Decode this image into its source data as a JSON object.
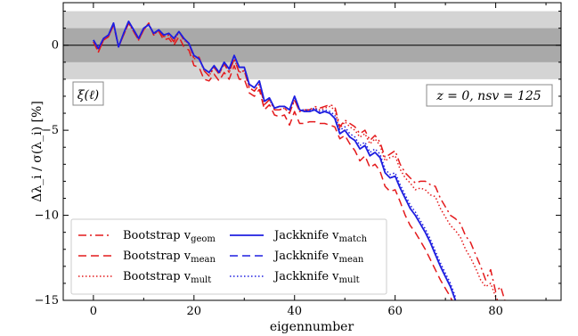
{
  "chart_data": {
    "type": "line",
    "xlabel": "eigennumber",
    "ylabel": "Δλ_i / σ(λ_i)  [%]",
    "xlim": [
      -6,
      93
    ],
    "ylim": [
      -15,
      2.5
    ],
    "xticks": [
      0,
      20,
      40,
      60,
      80
    ],
    "yticks": [
      0,
      -5,
      -10,
      -15
    ],
    "bands": [
      {
        "from": -2,
        "to": 2,
        "color": "#d4d4d4"
      },
      {
        "from": -1,
        "to": 1,
        "color": "#a9a9a9"
      }
    ],
    "hline": 0,
    "annotations": {
      "left": "ξ(ℓ)",
      "right": "z = 0,  nsv = 125"
    },
    "series": [
      {
        "name": "Bootstrap vgeom",
        "color": "#e41a1c",
        "dash": "dashdot",
        "x": [
          0,
          1,
          2,
          3,
          4,
          5,
          6,
          7,
          8,
          9,
          10,
          11,
          12,
          13,
          14,
          15,
          16,
          17,
          18,
          19,
          20,
          21,
          22,
          23,
          24,
          25,
          26,
          27,
          28,
          29,
          30,
          31,
          32,
          33,
          34,
          35,
          36,
          37,
          38,
          39,
          40,
          41,
          42,
          43,
          44,
          45,
          46,
          47,
          48,
          49,
          50,
          51,
          52,
          53,
          54,
          55,
          56,
          57,
          58,
          59,
          60,
          61,
          62,
          63,
          64,
          65,
          66,
          67,
          68,
          69,
          70,
          71,
          72,
          73,
          74,
          75,
          76,
          77,
          78,
          79,
          80,
          81,
          82
        ],
        "y": [
          0.2,
          -0.4,
          0.3,
          0.5,
          1.2,
          -0.1,
          0.6,
          1.3,
          0.8,
          0.3,
          0.9,
          1.3,
          0.6,
          0.9,
          0.5,
          0.6,
          0.2,
          0.8,
          0.3,
          0.1,
          -0.8,
          -0.7,
          -1.5,
          -1.8,
          -1.3,
          -1.7,
          -1.1,
          -1.6,
          -0.8,
          -1.6,
          -1.5,
          -2.5,
          -2.7,
          -2.3,
          -3.5,
          -3.2,
          -3.8,
          -3.8,
          -3.7,
          -4.0,
          -3.2,
          -3.9,
          -3.8,
          -3.8,
          -3.6,
          -3.7,
          -3.6,
          -3.5,
          -3.6,
          -4.8,
          -4.4,
          -4.6,
          -4.8,
          -5.2,
          -5.0,
          -5.6,
          -5.3,
          -5.7,
          -6.6,
          -6.4,
          -6.2,
          -7.0,
          -7.5,
          -7.8,
          -8.1,
          -8.0,
          -8.0,
          -8.2,
          -8.3,
          -9.0,
          -9.5,
          -10.0,
          -10.2,
          -10.5,
          -11.2,
          -11.6,
          -12.3,
          -13.0,
          -13.8,
          -13.2,
          -14.5,
          -14.2,
          -15.2
        ]
      },
      {
        "name": "Bootstrap vmean",
        "color": "#e41a1c",
        "dash": "dashed",
        "x": [
          0,
          1,
          2,
          3,
          4,
          5,
          6,
          7,
          8,
          9,
          10,
          11,
          12,
          13,
          14,
          15,
          16,
          17,
          18,
          19,
          20,
          21,
          22,
          23,
          24,
          25,
          26,
          27,
          28,
          29,
          30,
          31,
          32,
          33,
          34,
          35,
          36,
          37,
          38,
          39,
          40,
          41,
          42,
          43,
          44,
          45,
          46,
          47,
          48,
          49,
          50,
          51,
          52,
          53,
          54,
          55,
          56,
          57,
          58,
          59,
          60,
          61,
          62,
          63,
          64,
          65,
          66,
          67,
          68,
          69,
          70,
          71,
          72
        ],
        "y": [
          0.2,
          -0.4,
          0.3,
          0.5,
          1.2,
          -0.1,
          0.6,
          1.3,
          0.8,
          0.3,
          0.9,
          1.3,
          0.6,
          0.8,
          0.3,
          0.4,
          0.0,
          0.5,
          -0.1,
          -0.3,
          -1.2,
          -1.3,
          -2.0,
          -2.1,
          -1.7,
          -2.1,
          -1.6,
          -2.0,
          -1.2,
          -2.0,
          -2.0,
          -2.8,
          -3.0,
          -2.6,
          -3.8,
          -3.5,
          -4.1,
          -4.2,
          -4.1,
          -4.7,
          -3.9,
          -4.6,
          -4.6,
          -4.5,
          -4.5,
          -4.6,
          -4.6,
          -4.7,
          -4.8,
          -5.5,
          -5.3,
          -5.8,
          -6.2,
          -6.8,
          -6.5,
          -7.2,
          -7.0,
          -7.4,
          -8.3,
          -8.6,
          -8.5,
          -9.2,
          -10.0,
          -10.6,
          -11.0,
          -11.5,
          -12.0,
          -12.6,
          -13.2,
          -13.8,
          -14.3,
          -14.8,
          -15.5
        ]
      },
      {
        "name": "Bootstrap vmult",
        "color": "#e41a1c",
        "dash": "dotted",
        "x": [
          0,
          1,
          2,
          3,
          4,
          5,
          6,
          7,
          8,
          9,
          10,
          11,
          12,
          13,
          14,
          15,
          16,
          17,
          18,
          19,
          20,
          21,
          22,
          23,
          24,
          25,
          26,
          27,
          28,
          29,
          30,
          31,
          32,
          33,
          34,
          35,
          36,
          37,
          38,
          39,
          40,
          41,
          42,
          43,
          44,
          45,
          46,
          47,
          48,
          49,
          50,
          51,
          52,
          53,
          54,
          55,
          56,
          57,
          58,
          59,
          60,
          61,
          62,
          63,
          64,
          65,
          66,
          67,
          68,
          69,
          70,
          71,
          72,
          73,
          74,
          75,
          76,
          77,
          78,
          79,
          80,
          81
        ],
        "y": [
          0.2,
          -0.4,
          0.3,
          0.5,
          1.2,
          -0.1,
          0.6,
          1.3,
          0.8,
          0.3,
          0.9,
          1.3,
          0.6,
          0.9,
          0.5,
          0.6,
          0.2,
          0.8,
          0.3,
          0.1,
          -0.8,
          -0.7,
          -1.5,
          -1.8,
          -1.3,
          -1.7,
          -1.1,
          -1.6,
          -0.8,
          -1.6,
          -1.5,
          -2.5,
          -2.7,
          -2.3,
          -3.5,
          -3.2,
          -3.8,
          -3.8,
          -3.7,
          -4.0,
          -3.2,
          -3.9,
          -3.8,
          -3.9,
          -3.7,
          -3.8,
          -3.7,
          -3.6,
          -3.8,
          -4.9,
          -4.5,
          -4.8,
          -5.0,
          -5.4,
          -5.2,
          -5.8,
          -5.5,
          -5.9,
          -6.8,
          -6.6,
          -6.5,
          -7.3,
          -7.8,
          -8.1,
          -8.5,
          -8.4,
          -8.5,
          -8.8,
          -8.9,
          -9.6,
          -10.1,
          -10.6,
          -10.9,
          -11.3,
          -12.0,
          -12.5,
          -13.1,
          -13.8,
          -14.2,
          -14.0,
          -14.8,
          -15.3
        ]
      },
      {
        "name": "Jackknife vmatch",
        "color": "#1f1fe0",
        "dash": "solid",
        "x": [
          0,
          1,
          2,
          3,
          4,
          5,
          6,
          7,
          8,
          9,
          10,
          11,
          12,
          13,
          14,
          15,
          16,
          17,
          18,
          19,
          20,
          21,
          22,
          23,
          24,
          25,
          26,
          27,
          28,
          29,
          30,
          31,
          32,
          33,
          34,
          35,
          36,
          37,
          38,
          39,
          40,
          41,
          42,
          43,
          44,
          45,
          46,
          47,
          48,
          49,
          50,
          51,
          52,
          53,
          54,
          55,
          56,
          57,
          58,
          59,
          60,
          61,
          62,
          63,
          64,
          65,
          66,
          67,
          68,
          69,
          70,
          71,
          72
        ],
        "y": [
          0.3,
          -0.2,
          0.4,
          0.6,
          1.3,
          -0.1,
          0.7,
          1.4,
          0.9,
          0.4,
          1.0,
          1.2,
          0.7,
          0.9,
          0.6,
          0.7,
          0.4,
          0.8,
          0.4,
          0.1,
          -0.6,
          -0.8,
          -1.4,
          -1.6,
          -1.2,
          -1.6,
          -1.0,
          -1.4,
          -0.6,
          -1.3,
          -1.3,
          -2.3,
          -2.5,
          -2.1,
          -3.3,
          -3.1,
          -3.7,
          -3.6,
          -3.6,
          -3.8,
          -3.0,
          -3.8,
          -3.9,
          -3.9,
          -3.8,
          -4.0,
          -3.9,
          -4.0,
          -4.3,
          -5.2,
          -5.0,
          -5.4,
          -5.6,
          -6.1,
          -5.9,
          -6.5,
          -6.3,
          -6.6,
          -7.5,
          -7.8,
          -7.7,
          -8.4,
          -9.0,
          -9.6,
          -10.0,
          -10.5,
          -11.0,
          -11.6,
          -12.3,
          -13.0,
          -13.6,
          -14.2,
          -15.0
        ]
      },
      {
        "name": "Jackknife vmean",
        "color": "#1f1fe0",
        "dash": "dashed",
        "x": [
          0,
          1,
          2,
          3,
          4,
          5,
          6,
          7,
          8,
          9,
          10,
          11,
          12,
          13,
          14,
          15,
          16,
          17,
          18,
          19,
          20,
          21,
          22,
          23,
          24,
          25,
          26,
          27,
          28,
          29,
          30,
          31,
          32,
          33,
          34,
          35,
          36,
          37,
          38,
          39,
          40,
          41,
          42,
          43,
          44,
          45,
          46,
          47,
          48,
          49,
          50,
          51,
          52,
          53,
          54,
          55,
          56,
          57,
          58,
          59,
          60,
          61,
          62,
          63,
          64,
          65,
          66,
          67,
          68,
          69,
          70,
          71,
          72
        ],
        "y": [
          0.3,
          -0.2,
          0.4,
          0.6,
          1.3,
          -0.1,
          0.7,
          1.4,
          0.9,
          0.4,
          1.0,
          1.2,
          0.7,
          0.9,
          0.6,
          0.7,
          0.4,
          0.8,
          0.4,
          0.1,
          -0.6,
          -0.8,
          -1.4,
          -1.6,
          -1.2,
          -1.6,
          -1.0,
          -1.4,
          -0.6,
          -1.3,
          -1.3,
          -2.3,
          -2.5,
          -2.1,
          -3.3,
          -3.1,
          -3.7,
          -3.6,
          -3.6,
          -3.8,
          -3.0,
          -3.8,
          -3.9,
          -3.9,
          -3.8,
          -4.0,
          -3.9,
          -4.0,
          -4.3,
          -5.2,
          -5.0,
          -5.4,
          -5.6,
          -6.1,
          -5.9,
          -6.5,
          -6.3,
          -6.6,
          -7.5,
          -7.8,
          -7.7,
          -8.4,
          -9.0,
          -9.6,
          -10.0,
          -10.5,
          -11.0,
          -11.6,
          -12.3,
          -13.0,
          -13.6,
          -14.2,
          -15.0
        ]
      },
      {
        "name": "Jackknife vmult",
        "color": "#1f1fe0",
        "dash": "dotted",
        "x": [
          0,
          1,
          2,
          3,
          4,
          5,
          6,
          7,
          8,
          9,
          10,
          11,
          12,
          13,
          14,
          15,
          16,
          17,
          18,
          19,
          20,
          21,
          22,
          23,
          24,
          25,
          26,
          27,
          28,
          29,
          30,
          31,
          32,
          33,
          34,
          35,
          36,
          37,
          38,
          39,
          40,
          41,
          42,
          43,
          44,
          45,
          46,
          47,
          48,
          49,
          50,
          51,
          52,
          53,
          54,
          55,
          56,
          57,
          58,
          59,
          60,
          61,
          62,
          63,
          64,
          65,
          66,
          67,
          68,
          69,
          70,
          71,
          72
        ],
        "y": [
          0.3,
          -0.2,
          0.4,
          0.6,
          1.3,
          -0.1,
          0.7,
          1.4,
          0.9,
          0.4,
          1.0,
          1.2,
          0.7,
          0.9,
          0.6,
          0.7,
          0.4,
          0.8,
          0.4,
          0.1,
          -0.6,
          -0.8,
          -1.4,
          -1.6,
          -1.2,
          -1.6,
          -1.0,
          -1.4,
          -0.6,
          -1.3,
          -1.3,
          -2.3,
          -2.5,
          -2.1,
          -3.3,
          -3.1,
          -3.7,
          -3.6,
          -3.6,
          -3.8,
          -3.0,
          -3.8,
          -3.8,
          -3.8,
          -3.7,
          -3.9,
          -3.8,
          -3.9,
          -4.1,
          -5.0,
          -4.8,
          -5.2,
          -5.4,
          -5.9,
          -5.7,
          -6.3,
          -6.1,
          -6.4,
          -7.3,
          -7.6,
          -7.5,
          -8.2,
          -8.8,
          -9.4,
          -9.8,
          -10.3,
          -10.8,
          -11.4,
          -12.1,
          -12.8,
          -13.4,
          -14.0,
          -14.8
        ]
      }
    ],
    "legend": {
      "placement": "lower-left",
      "columns": [
        [
          {
            "label": "Bootstrap v",
            "sub": "geom",
            "color": "#e41a1c",
            "dash": "dashdot"
          },
          {
            "label": "Bootstrap v",
            "sub": "mean",
            "color": "#e41a1c",
            "dash": "dashed"
          },
          {
            "label": "Bootstrap v",
            "sub": "mult",
            "color": "#e41a1c",
            "dash": "dotted"
          }
        ],
        [
          {
            "label": "Jackknife v",
            "sub": "match",
            "color": "#1f1fe0",
            "dash": "solid"
          },
          {
            "label": "Jackknife v",
            "sub": "mean",
            "color": "#1f1fe0",
            "dash": "dashed"
          },
          {
            "label": "Jackknife v",
            "sub": "mult",
            "color": "#1f1fe0",
            "dash": "dotted"
          }
        ]
      ]
    }
  }
}
